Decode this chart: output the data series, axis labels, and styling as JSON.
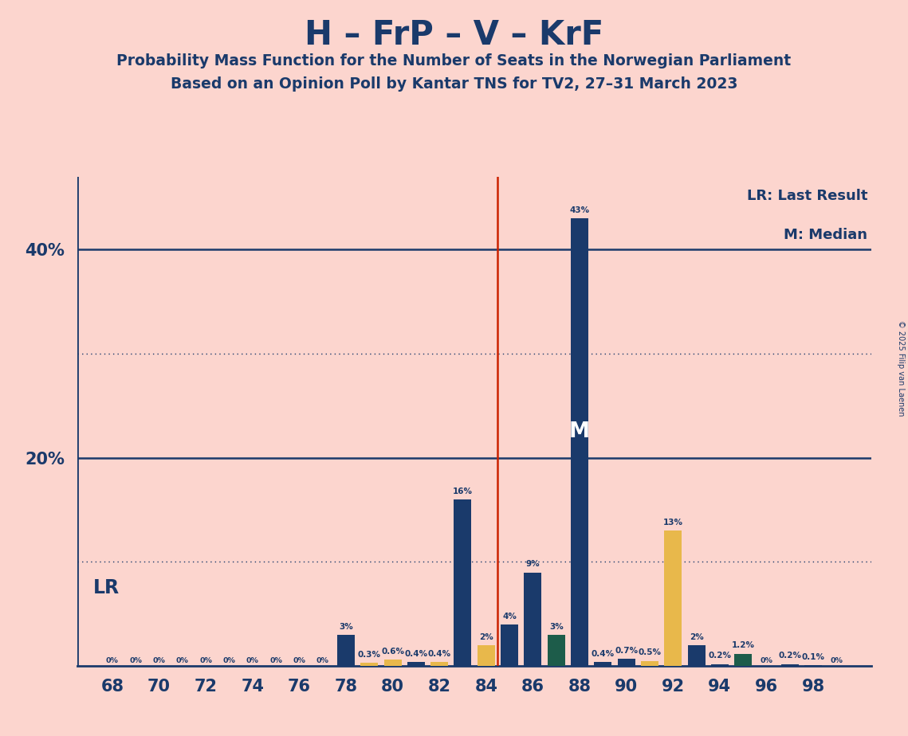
{
  "title": "H – FrP – V – KrF",
  "subtitle1": "Probability Mass Function for the Number of Seats in the Norwegian Parliament",
  "subtitle2": "Based on an Opinion Poll by Kantar TNS for TV2, 27–31 March 2023",
  "copyright": "© 2025 Filip van Laenen",
  "background_color": "#fcd5ce",
  "navy": "#1a3a6b",
  "yellow": "#e8b84b",
  "green": "#1d5c4a",
  "vline_color": "#cc2200",
  "lr_seat": 84.5,
  "median_seat": 88,
  "bars": [
    [
      68,
      0.0,
      "navy"
    ],
    [
      69,
      0.0,
      "navy"
    ],
    [
      70,
      0.0,
      "navy"
    ],
    [
      71,
      0.0,
      "navy"
    ],
    [
      72,
      0.0,
      "navy"
    ],
    [
      73,
      0.0,
      "navy"
    ],
    [
      74,
      0.0,
      "navy"
    ],
    [
      75,
      0.0,
      "navy"
    ],
    [
      76,
      0.0,
      "navy"
    ],
    [
      77,
      0.0,
      "navy"
    ],
    [
      78,
      3.0,
      "navy"
    ],
    [
      79,
      0.3,
      "yellow"
    ],
    [
      80,
      0.6,
      "yellow"
    ],
    [
      81,
      0.4,
      "navy"
    ],
    [
      82,
      0.4,
      "yellow"
    ],
    [
      83,
      16.0,
      "navy"
    ],
    [
      84,
      2.0,
      "yellow"
    ],
    [
      85,
      4.0,
      "navy"
    ],
    [
      86,
      9.0,
      "navy"
    ],
    [
      87,
      3.0,
      "green"
    ],
    [
      88,
      43.0,
      "navy"
    ],
    [
      89,
      0.4,
      "navy"
    ],
    [
      90,
      0.7,
      "navy"
    ],
    [
      91,
      0.5,
      "yellow"
    ],
    [
      92,
      13.0,
      "yellow"
    ],
    [
      93,
      2.0,
      "navy"
    ],
    [
      94,
      0.2,
      "navy"
    ],
    [
      95,
      1.2,
      "green"
    ],
    [
      96,
      0.0,
      "navy"
    ],
    [
      97,
      0.2,
      "navy"
    ],
    [
      98,
      0.1,
      "navy"
    ],
    [
      99,
      0.0,
      "navy"
    ]
  ],
  "xlim": [
    66.5,
    100.5
  ],
  "ylim": [
    0,
    47
  ],
  "xticks": [
    68,
    70,
    72,
    74,
    76,
    78,
    80,
    82,
    84,
    86,
    88,
    90,
    92,
    94,
    96,
    98
  ],
  "ytick_solid": [
    20,
    40
  ],
  "ytick_dotted": [
    10,
    30
  ],
  "bar_width": 0.75
}
